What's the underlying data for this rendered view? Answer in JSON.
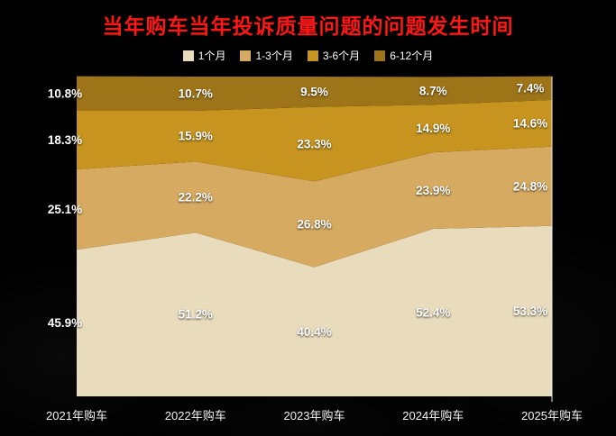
{
  "title": {
    "text": "当年购车当年投诉质量问题的问题发生时间",
    "color": "#ff1616"
  },
  "chart_data": {
    "type": "area",
    "stacked": true,
    "percent": true,
    "title": "当年购车当年投诉质量问题的问题发生时间",
    "categories": [
      "2021年购车",
      "2022年购车",
      "2023年购车",
      "2024年购车",
      "2025年购车"
    ],
    "series": [
      {
        "name": "1个月",
        "color": "#e9dcbc",
        "values": [
          45.9,
          51.2,
          40.4,
          52.4,
          53.3
        ]
      },
      {
        "name": "1-3个月",
        "color": "#d6aa60",
        "values": [
          25.1,
          22.2,
          26.8,
          23.9,
          24.8
        ]
      },
      {
        "name": "3-6个月",
        "color": "#c6941f",
        "values": [
          18.3,
          15.9,
          23.3,
          14.9,
          14.6
        ]
      },
      {
        "name": "6-12个月",
        "color": "#9e7418",
        "values": [
          10.8,
          10.7,
          9.5,
          8.7,
          7.4
        ]
      }
    ],
    "value_suffix": "%",
    "ylim": [
      0,
      100
    ],
    "legend_position": "top",
    "background": "#000000",
    "label_color": "#ffffff",
    "axis_line_color": "#e8e8e8"
  }
}
